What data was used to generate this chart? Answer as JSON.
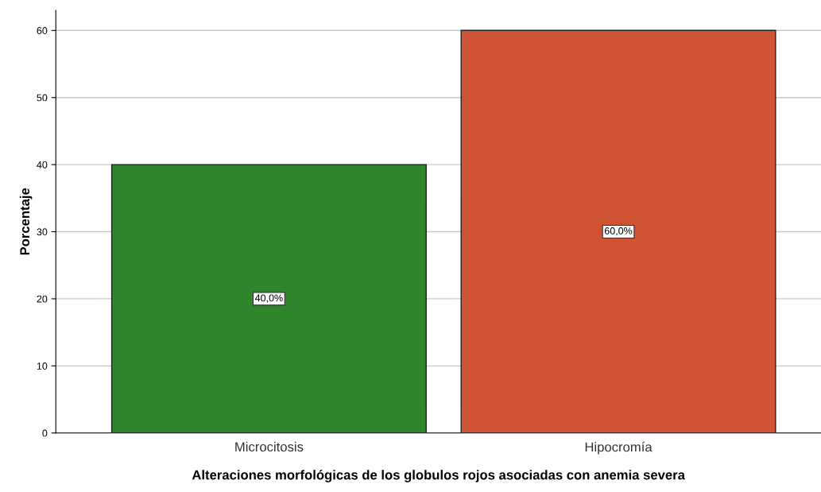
{
  "chart_data": {
    "type": "bar",
    "xlabel": "Alteraciones morfológicas de los globulos rojos asociadas con anemia severa",
    "ylabel": "Porcentaje",
    "categories": [
      "Microcitosis",
      "Hipocromía"
    ],
    "values": [
      40,
      60
    ],
    "colors": [
      "#2e852c",
      "#d05433"
    ],
    "value_labels": [
      "40,0%",
      "60,0%"
    ],
    "ylim": [
      0,
      63
    ],
    "yticks": [
      0,
      10,
      20,
      30,
      40,
      50,
      60
    ],
    "grid": "y",
    "legend": false
  }
}
